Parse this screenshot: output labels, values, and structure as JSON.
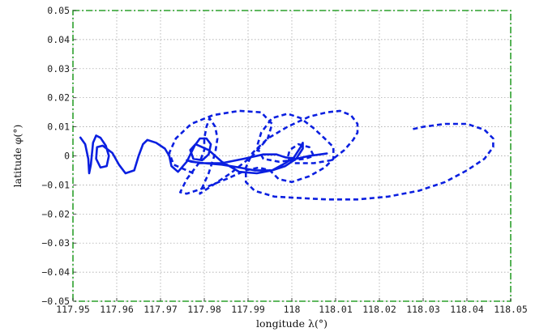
{
  "chart_data": {
    "type": "line",
    "title": "",
    "xlabel": "longitude λ(°)",
    "ylabel": "latitude φ(°)",
    "xlim": [
      117.95,
      118.05
    ],
    "ylim": [
      -0.05,
      0.05
    ],
    "grid": true,
    "frame_color": "#2ca02c",
    "x_ticks": [
      117.95,
      117.96,
      117.97,
      117.98,
      117.99,
      118.0,
      118.01,
      118.02,
      118.03,
      118.04,
      118.05
    ],
    "x_tick_labels": [
      "117.95",
      "117.96",
      "117.97",
      "117.98",
      "117.99",
      "118",
      "118.01",
      "118.02",
      "118.03",
      "118.04",
      "118.05"
    ],
    "y_ticks": [
      -0.05,
      -0.04,
      -0.03,
      -0.02,
      -0.01,
      0,
      0.01,
      0.02,
      0.03,
      0.04,
      0.05
    ],
    "y_tick_labels": [
      "−0.05",
      "−0.04",
      "−0.03",
      "−0.02",
      "−0.01",
      "0",
      "0.01",
      "0.02",
      "0.03",
      "0.04",
      "0.05"
    ],
    "series": [
      {
        "style": "solid",
        "color": "#0a1fe0",
        "points": [
          [
            117.9517,
            0.0063
          ],
          [
            117.9528,
            0.004
          ],
          [
            117.9535,
            -0.001
          ],
          [
            117.9537,
            -0.006
          ],
          [
            117.9541,
            -0.003
          ],
          [
            117.9546,
            0.0045
          ],
          [
            117.9553,
            0.007
          ],
          [
            117.9563,
            0.0062
          ],
          [
            117.9575,
            0.0035
          ],
          [
            117.9582,
            0.0
          ],
          [
            117.9577,
            -0.0035
          ],
          [
            117.9563,
            -0.004
          ],
          [
            117.9553,
            -0.001
          ],
          [
            117.9555,
            0.003
          ],
          [
            117.9568,
            0.0035
          ],
          [
            117.959,
            0.001
          ],
          [
            117.9605,
            -0.003
          ],
          [
            117.962,
            -0.006
          ],
          [
            117.964,
            -0.005
          ],
          [
            117.965,
            0.0
          ],
          [
            117.966,
            0.004
          ],
          [
            117.967,
            0.0055
          ],
          [
            117.969,
            0.0045
          ],
          [
            117.971,
            0.0025
          ],
          [
            117.972,
            0.0
          ],
          [
            117.9725,
            -0.0035
          ],
          [
            117.974,
            -0.0055
          ],
          [
            117.976,
            -0.002
          ],
          [
            117.9778,
            0.0035
          ],
          [
            117.979,
            0.006
          ],
          [
            117.9805,
            0.006
          ],
          [
            117.9815,
            0.004
          ],
          [
            117.981,
            0.0005
          ],
          [
            117.9795,
            -0.0015
          ],
          [
            117.9775,
            -0.001
          ],
          [
            117.9768,
            0.002
          ],
          [
            117.978,
            0.004
          ],
          [
            117.981,
            0.002
          ],
          [
            117.984,
            -0.002
          ],
          [
            117.988,
            -0.0055
          ],
          [
            117.992,
            -0.006
          ],
          [
            117.9955,
            -0.005
          ],
          [
            117.9985,
            -0.0025
          ],
          [
            118.0005,
            -0.0005
          ],
          [
            118.002,
            0.003
          ],
          [
            118.0025,
            0.0045
          ],
          [
            118.0025,
            0.0025
          ],
          [
            118.001,
            -0.001
          ],
          [
            117.9985,
            -0.0035
          ],
          [
            117.9955,
            -0.005
          ],
          [
            117.9915,
            -0.005
          ],
          [
            117.988,
            -0.004
          ],
          [
            117.984,
            -0.003
          ],
          [
            117.98,
            -0.0025
          ],
          [
            117.977,
            -0.002
          ],
          [
            117.976,
            -0.0015
          ],
          [
            117.979,
            -0.0025
          ],
          [
            117.984,
            -0.0025
          ],
          [
            117.989,
            -0.001
          ],
          [
            117.9935,
            0.0005
          ],
          [
            117.9965,
            0.0005
          ],
          [
            117.9985,
            -0.0005
          ],
          [
            118.001,
            -0.001
          ],
          [
            118.004,
            0.0
          ],
          [
            118.0065,
            0.0005
          ],
          [
            118.008,
            0.0008
          ]
        ]
      },
      {
        "style": "dashed",
        "color": "#0a1fe0",
        "points": [
          [
            117.9775,
            -0.006
          ],
          [
            117.973,
            -0.003
          ],
          [
            117.972,
            0.001
          ],
          [
            117.9735,
            0.006
          ],
          [
            117.977,
            0.011
          ],
          [
            117.982,
            0.014
          ],
          [
            117.988,
            0.0155
          ],
          [
            117.993,
            0.015
          ],
          [
            117.9955,
            0.011
          ],
          [
            117.9945,
            0.006
          ],
          [
            117.991,
            0.0
          ],
          [
            117.986,
            -0.006
          ],
          [
            117.981,
            -0.011
          ],
          [
            117.979,
            -0.013
          ],
          [
            117.9795,
            -0.011
          ],
          [
            117.981,
            -0.006
          ],
          [
            117.9825,
            0.001
          ],
          [
            117.983,
            0.006
          ],
          [
            117.9825,
            0.01
          ],
          [
            117.9812,
            0.013
          ],
          [
            117.9805,
            0.01
          ],
          [
            117.98,
            0.006
          ],
          [
            117.98,
            0.002
          ],
          [
            117.979,
            -0.002
          ],
          [
            117.976,
            -0.008
          ],
          [
            117.9745,
            -0.0125
          ],
          [
            117.976,
            -0.013
          ],
          [
            117.98,
            -0.011
          ],
          [
            117.985,
            -0.008
          ],
          [
            117.9895,
            -0.005
          ],
          [
            117.9925,
            -0.004
          ],
          [
            117.995,
            -0.005
          ],
          [
            117.997,
            -0.008
          ],
          [
            118.0,
            -0.009
          ],
          [
            118.004,
            -0.007
          ],
          [
            118.0075,
            -0.004
          ],
          [
            118.0095,
            -0.001
          ],
          [
            118.0095,
            0.003
          ],
          [
            118.0075,
            0.006
          ],
          [
            118.005,
            0.0095
          ],
          [
            118.002,
            0.013
          ],
          [
            117.999,
            0.0145
          ],
          [
            117.9955,
            0.013
          ],
          [
            117.993,
            0.008
          ],
          [
            117.992,
            0.003
          ],
          [
            117.9935,
            -0.001
          ],
          [
            117.997,
            -0.002
          ],
          [
            118.0,
            -0.0015
          ],
          [
            118.003,
            -0.001
          ],
          [
            118.005,
            0.0
          ],
          [
            118.004,
            0.003
          ],
          [
            118.0015,
            0.004
          ],
          [
            117.9995,
            0.002
          ],
          [
            117.999,
            -0.001
          ],
          [
            118.0005,
            -0.0025
          ],
          [
            118.005,
            -0.0025
          ],
          [
            118.009,
            -0.0015
          ],
          [
            118.012,
            0.002
          ],
          [
            118.014,
            0.0055
          ],
          [
            118.015,
            0.008
          ],
          [
            118.015,
            0.011
          ],
          [
            118.0135,
            0.014
          ],
          [
            118.011,
            0.0155
          ],
          [
            118.008,
            0.015
          ],
          [
            118.004,
            0.0135
          ],
          [
            117.999,
            0.01
          ],
          [
            117.9945,
            0.006
          ],
          [
            117.991,
            0.001
          ],
          [
            117.9895,
            -0.004
          ],
          [
            117.9895,
            -0.009
          ],
          [
            117.9915,
            -0.012
          ],
          [
            117.996,
            -0.014
          ],
          [
            118.002,
            -0.0145
          ],
          [
            118.008,
            -0.015
          ],
          [
            118.015,
            -0.015
          ],
          [
            118.022,
            -0.014
          ],
          [
            118.029,
            -0.012
          ],
          [
            118.035,
            -0.009
          ],
          [
            118.04,
            -0.005
          ],
          [
            118.044,
            -0.001
          ],
          [
            118.046,
            0.003
          ],
          [
            118.046,
            0.006
          ],
          [
            118.044,
            0.009
          ],
          [
            118.04,
            0.011
          ],
          [
            118.035,
            0.011
          ],
          [
            118.03,
            0.01
          ],
          [
            118.027,
            0.009
          ]
        ]
      }
    ]
  }
}
